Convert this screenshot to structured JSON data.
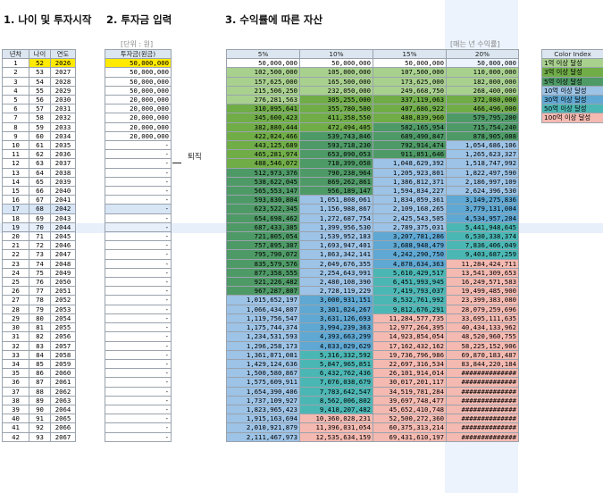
{
  "titles": {
    "t1": "1. 나이 및 투자시작",
    "t2": "2. 투자금 입력",
    "t3": "3. 수익률에 따른 자산"
  },
  "captions": {
    "unit": "[단위 : 원]",
    "rate": "[매는 년 수익률]"
  },
  "retire_note": "퇴직",
  "left_headers": [
    "년차",
    "나이",
    "연도"
  ],
  "invest_header": "투자금(원금)",
  "rate_headers": [
    "5%",
    "10%",
    "15%",
    "20%"
  ],
  "color_index": {
    "title": "Color Index",
    "items": [
      {
        "label": "1억 이상 달성",
        "color": "#a9d18e"
      },
      {
        "label": "3억 이상 달성",
        "color": "#70ad47"
      },
      {
        "label": "5억 이상 달성",
        "color": "#4e9a66"
      },
      {
        "label": "10억 이상 달성",
        "color": "#9dc3e6"
      },
      {
        "label": "30억 이상 달성",
        "color": "#5fa8d3"
      },
      {
        "label": "50억 이상 달성",
        "color": "#4bb7b4"
      },
      {
        "label": "100억 이상 달성",
        "color": "#f4b9b0"
      }
    ]
  },
  "rows": [
    [
      1,
      52,
      2026,
      "50,000,000",
      "50,000,000",
      "50,000,000",
      "50,000,000",
      "50,000,000"
    ],
    [
      2,
      53,
      2027,
      "50,000,000",
      "102,500,000",
      "105,000,000",
      "107,500,000",
      "110,000,000"
    ],
    [
      3,
      54,
      2028,
      "50,000,000",
      "157,625,000",
      "165,500,000",
      "173,625,000",
      "182,000,000"
    ],
    [
      4,
      55,
      2029,
      "50,000,000",
      "215,506,250",
      "232,050,000",
      "249,668,750",
      "268,400,000"
    ],
    [
      5,
      56,
      2030,
      "20,000,000",
      "276,281,563",
      "305,255,000",
      "337,119,063",
      "372,080,000"
    ],
    [
      6,
      57,
      2031,
      "20,000,000",
      "310,095,641",
      "355,780,500",
      "407,686,922",
      "466,496,000"
    ],
    [
      7,
      58,
      2032,
      "20,000,000",
      "345,600,423",
      "411,358,550",
      "488,839,960",
      "579,795,200"
    ],
    [
      8,
      59,
      2033,
      "20,000,000",
      "382,880,444",
      "472,494,405",
      "582,165,954",
      "715,754,240"
    ],
    [
      9,
      60,
      2034,
      "20,000,000",
      "422,024,466",
      "539,743,846",
      "689,490,847",
      "878,905,088"
    ],
    [
      10,
      61,
      2035,
      "-",
      "443,125,689",
      "593,718,230",
      "792,914,474",
      "1,054,686,106"
    ],
    [
      11,
      62,
      2036,
      "-",
      "465,281,974",
      "653,090,053",
      "911,851,646",
      "1,265,623,327"
    ],
    [
      12,
      63,
      2037,
      "-",
      "488,546,072",
      "718,399,058",
      "1,048,629,392",
      "1,518,747,992"
    ],
    [
      13,
      64,
      2038,
      "-",
      "512,973,376",
      "790,238,964",
      "1,205,923,801",
      "1,822,497,590"
    ],
    [
      14,
      65,
      2039,
      "-",
      "538,622,045",
      "869,262,861",
      "1,386,812,371",
      "2,186,997,109"
    ],
    [
      15,
      66,
      2040,
      "-",
      "565,553,147",
      "956,189,147",
      "1,594,834,227",
      "2,624,396,530"
    ],
    [
      16,
      67,
      2041,
      "-",
      "593,830,804",
      "1,051,808,061",
      "1,834,059,361",
      "3,149,275,836"
    ],
    [
      17,
      68,
      2042,
      "-",
      "623,522,345",
      "1,156,988,867",
      "2,109,168,265",
      "3,779,131,004"
    ],
    [
      18,
      69,
      2043,
      "-",
      "654,698,462",
      "1,272,687,754",
      "2,425,543,505",
      "4,534,957,204"
    ],
    [
      19,
      70,
      2044,
      "-",
      "687,433,385",
      "1,399,956,530",
      "2,789,375,031",
      "5,441,948,645"
    ],
    [
      20,
      71,
      2045,
      "-",
      "721,805,054",
      "1,539,952,183",
      "3,207,781,286",
      "6,530,338,374"
    ],
    [
      21,
      72,
      2046,
      "-",
      "757,895,307",
      "1,693,947,401",
      "3,688,948,479",
      "7,836,406,049"
    ],
    [
      22,
      73,
      2047,
      "-",
      "795,790,072",
      "1,863,342,141",
      "4,242,290,750",
      "9,403,687,259"
    ],
    [
      23,
      74,
      2048,
      "-",
      "835,579,576",
      "2,049,676,355",
      "4,878,634,363",
      "11,284,424,711"
    ],
    [
      24,
      75,
      2049,
      "-",
      "877,358,555",
      "2,254,643,991",
      "5,610,429,517",
      "13,541,309,653"
    ],
    [
      25,
      76,
      2050,
      "-",
      "921,226,482",
      "2,480,108,390",
      "6,451,993,945",
      "16,249,571,583"
    ],
    [
      26,
      77,
      2051,
      "-",
      "967,287,807",
      "2,728,119,229",
      "7,419,793,037",
      "19,499,485,900"
    ],
    [
      27,
      78,
      2052,
      "-",
      "1,015,652,197",
      "3,000,931,151",
      "8,532,761,992",
      "23,399,383,080"
    ],
    [
      28,
      79,
      2053,
      "-",
      "1,066,434,807",
      "3,301,024,267",
      "9,812,676,291",
      "28,079,259,696"
    ],
    [
      29,
      80,
      2054,
      "-",
      "1,119,756,547",
      "3,631,126,693",
      "11,284,577,735",
      "33,695,111,635"
    ],
    [
      30,
      81,
      2055,
      "-",
      "1,175,744,374",
      "3,994,239,363",
      "12,977,264,395",
      "40,434,133,962"
    ],
    [
      31,
      82,
      2056,
      "-",
      "1,234,531,593",
      "4,393,663,299",
      "14,923,854,054",
      "48,520,960,755"
    ],
    [
      32,
      83,
      2057,
      "-",
      "1,296,258,173",
      "4,833,029,629",
      "17,162,432,162",
      "58,225,152,906"
    ],
    [
      33,
      84,
      2058,
      "-",
      "1,361,071,081",
      "5,316,332,592",
      "19,736,796,986",
      "69,870,183,487"
    ],
    [
      34,
      85,
      2059,
      "-",
      "1,429,124,636",
      "5,847,965,851",
      "22,697,316,534",
      "83,844,220,184"
    ],
    [
      35,
      86,
      2060,
      "-",
      "1,500,580,867",
      "6,432,762,436",
      "26,101,914,014",
      "##############"
    ],
    [
      36,
      87,
      2061,
      "-",
      "1,575,609,911",
      "7,076,038,679",
      "30,017,201,117",
      "##############"
    ],
    [
      37,
      88,
      2062,
      "-",
      "1,654,390,406",
      "7,783,642,547",
      "34,519,781,284",
      "##############"
    ],
    [
      38,
      89,
      2063,
      "-",
      "1,737,109,927",
      "8,562,006,802",
      "39,697,748,477",
      "##############"
    ],
    [
      39,
      90,
      2064,
      "-",
      "1,823,965,423",
      "9,418,207,482",
      "45,652,410,748",
      "##############"
    ],
    [
      40,
      91,
      2065,
      "-",
      "1,915,163,694",
      "10,360,028,231",
      "52,500,272,360",
      "##############"
    ],
    [
      41,
      92,
      2066,
      "-",
      "2,010,921,879",
      "11,396,031,054",
      "60,375,313,214",
      "##############"
    ],
    [
      42,
      93,
      2067,
      "-",
      "2,111,467,973",
      "12,535,634,159",
      "69,431,610,197",
      "##############"
    ]
  ]
}
